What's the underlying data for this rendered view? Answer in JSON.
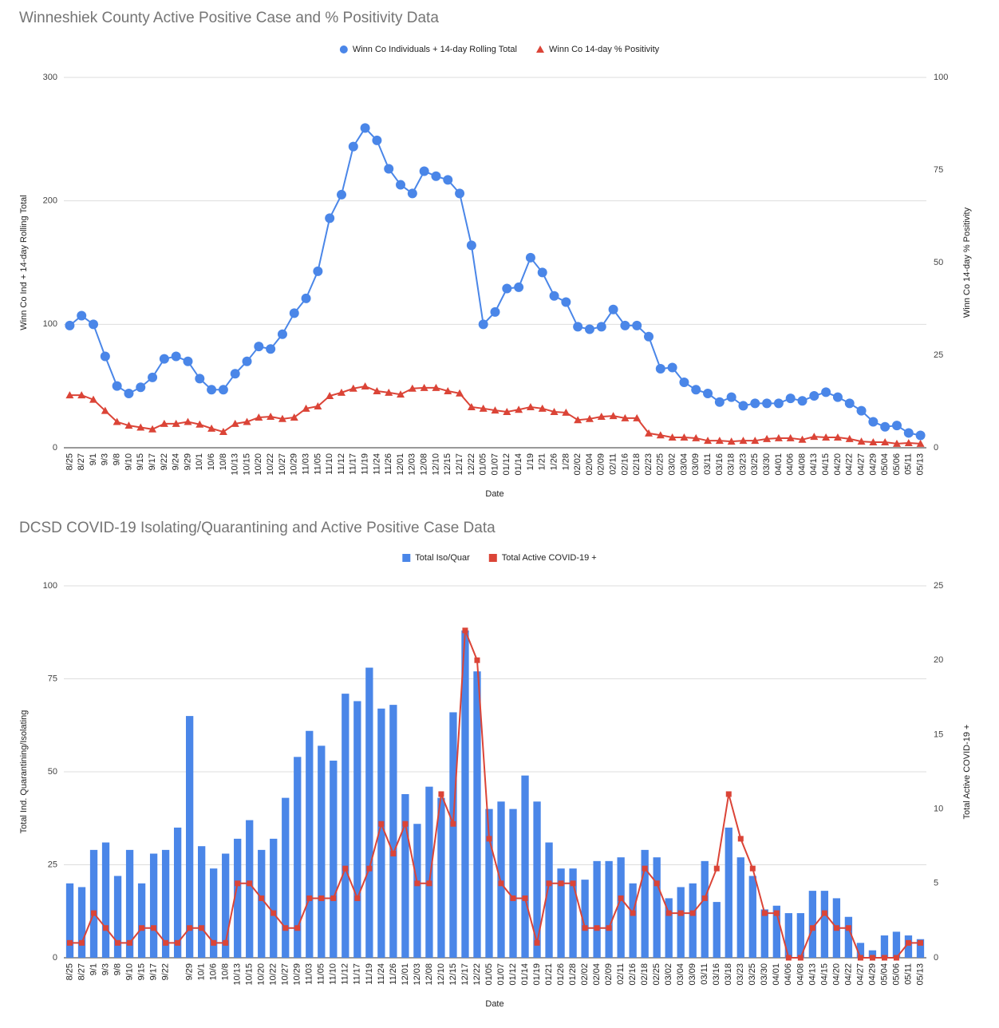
{
  "chart_data": [
    {
      "type": "line",
      "title": "Winneshiek County Active Positive Case and % Positivity Data",
      "xlabel": "Date",
      "ylabel": "Winn Co Ind + 14-day Rolling Total",
      "y2label": "Winn Co 14-day % Positivity",
      "categories": [
        "8/25",
        "8/27",
        "9/1",
        "9/3",
        "9/8",
        "9/10",
        "9/15",
        "9/17",
        "9/22",
        "9/24",
        "9/29",
        "10/1",
        "10/6",
        "10/8",
        "10/13",
        "10/15",
        "10/20",
        "10/22",
        "10/27",
        "10/29",
        "11/03",
        "11/05",
        "11/10",
        "11/12",
        "11/17",
        "11/19",
        "11/24",
        "11/26",
        "12/01",
        "12/03",
        "12/08",
        "12/10",
        "12/15",
        "12/17",
        "12/22",
        "01/05",
        "01/07",
        "01/12",
        "01/14",
        "1/19",
        "1/21",
        "1/26",
        "1/28",
        "02/02",
        "02/04",
        "02/09",
        "02/11",
        "02/16",
        "02/18",
        "02/23",
        "02/25",
        "03/02",
        "03/04",
        "03/09",
        "03/11",
        "03/16",
        "03/18",
        "03/23",
        "03/25",
        "03/30",
        "04/01",
        "04/06",
        "04/08",
        "04/13",
        "04/15",
        "04/20",
        "04/22",
        "04/27",
        "04/29",
        "05/04",
        "05/06",
        "05/11",
        "05/13"
      ],
      "series": [
        {
          "name": "Winn Co Individuals + 14-day Rolling Total",
          "color": "#4a86e8",
          "type": "line",
          "marker": "circle",
          "values": [
            99,
            107,
            100,
            74,
            50,
            44,
            49,
            57,
            72,
            74,
            70,
            56,
            47,
            47,
            60,
            70,
            82,
            80,
            92,
            109,
            121,
            143,
            186,
            205,
            244,
            259,
            249,
            226,
            213,
            206,
            224,
            220,
            217,
            206,
            164,
            100,
            110,
            129,
            130,
            154,
            142,
            123,
            118,
            98,
            96,
            98,
            112,
            99,
            99,
            90,
            64,
            65,
            53,
            47,
            44,
            37,
            41,
            34,
            36,
            36,
            36,
            40,
            38,
            42,
            45,
            41,
            36,
            30,
            21,
            17,
            18,
            12,
            10
          ]
        },
        {
          "name": "Winn Co 14-day % Positivity",
          "color": "#db4437",
          "type": "line",
          "marker": "triangle",
          "axis": "y2",
          "values": [
            14.2,
            14.2,
            13,
            10,
            7,
            6,
            5.5,
            5,
            6.5,
            6.5,
            7,
            6.3,
            5.2,
            4.3,
            6.5,
            7,
            8.2,
            8.4,
            7.8,
            8.2,
            10.6,
            11.2,
            14,
            14.9,
            16,
            16.6,
            15.3,
            14.9,
            14.4,
            16,
            16.2,
            16.2,
            15.3,
            14.7,
            11,
            10.6,
            10.1,
            9.7,
            10.3,
            11,
            10.6,
            9.7,
            9.5,
            7.5,
            7.8,
            8.4,
            8.6,
            8,
            8,
            3.9,
            3.4,
            2.8,
            2.8,
            2.6,
            1.9,
            1.9,
            1.7,
            1.9,
            1.9,
            2.4,
            2.6,
            2.6,
            2.2,
            3,
            2.8,
            2.8,
            2.4,
            1.7,
            1.5,
            1.5,
            1.1,
            1.3,
            1.1
          ]
        }
      ],
      "ylim": [
        0,
        300
      ],
      "yticks": [
        0,
        100,
        200,
        300
      ],
      "y2lim": [
        0,
        100
      ],
      "y2ticks": [
        0,
        25,
        50,
        75,
        100
      ],
      "grid": true,
      "legend": "top"
    },
    {
      "type": "bar",
      "title": "DCSD COVID-19 Isolating/Quarantining and Active Positive Case Data",
      "xlabel": "Date",
      "ylabel": "Total Ind. Quarantining/Isolating",
      "y2label": "Total Active COVID-19 +",
      "categories": [
        "8/25",
        "8/27",
        "9/1",
        "9/3",
        "9/8",
        "9/10",
        "9/15",
        "9/17",
        "9/22",
        null,
        "9/29",
        "10/1",
        "10/6",
        "10/8",
        "10/13",
        "10/15",
        "10/20",
        "10/22",
        "10/27",
        "10/29",
        "11/03",
        "11/05",
        "11/10",
        "11/12",
        "11/17",
        "11/19",
        "11/24",
        "11/26",
        "12/01",
        "12/03",
        "12/08",
        "12/10",
        "12/15",
        "12/17",
        "12/22",
        "01/05",
        "01/07",
        "01/12",
        "01/14",
        "01/19",
        "01/21",
        "01/26",
        "01/28",
        "02/02",
        "02/04",
        "02/09",
        "02/11",
        "02/16",
        "02/18",
        "02/25",
        "03/02",
        "03/04",
        "03/09",
        "03/11",
        "03/16",
        "03/18",
        "03/23",
        "03/25",
        "03/30",
        "04/01",
        "04/06",
        "04/08",
        "04/13",
        "04/15",
        "04/20",
        "04/22",
        "04/27",
        "04/29",
        "05/04",
        "05/06",
        "05/11",
        "05/13"
      ],
      "series": [
        {
          "name": "Total Iso/Quar",
          "color": "#4a86e8",
          "type": "bar",
          "marker": "square",
          "values": [
            20,
            19,
            29,
            31,
            22,
            29,
            20,
            28,
            29,
            35,
            65,
            30,
            24,
            28,
            32,
            37,
            29,
            32,
            43,
            54,
            61,
            57,
            53,
            71,
            69,
            78,
            67,
            68,
            44,
            36,
            46,
            43,
            66,
            88,
            77,
            40,
            42,
            40,
            49,
            42,
            31,
            24,
            24,
            21,
            26,
            26,
            27,
            20,
            29,
            27,
            16,
            19,
            20,
            26,
            15,
            35,
            27,
            22,
            13,
            14,
            12,
            12,
            18,
            18,
            16,
            11,
            4,
            2,
            6,
            7,
            6,
            5
          ]
        },
        {
          "name": "Total Active COVID-19 +",
          "color": "#db4437",
          "type": "line",
          "marker": "square",
          "axis": "y2",
          "values": [
            1,
            1,
            3,
            2,
            1,
            1,
            2,
            2,
            1,
            1,
            2,
            2,
            1,
            1,
            5,
            5,
            4,
            3,
            2,
            2,
            4,
            4,
            4,
            6,
            4,
            6,
            9,
            7,
            9,
            5,
            5,
            11,
            9,
            22,
            20,
            8,
            5,
            4,
            4,
            1,
            5,
            5,
            5,
            2,
            2,
            2,
            4,
            3,
            6,
            5,
            3,
            3,
            3,
            4,
            6,
            11,
            8,
            6,
            3,
            3,
            0,
            0,
            2,
            3,
            2,
            2,
            0,
            0,
            0,
            0,
            1,
            1
          ]
        }
      ],
      "ylim": [
        0,
        100
      ],
      "yticks": [
        0,
        25,
        50,
        75,
        100
      ],
      "y2lim": [
        0,
        25
      ],
      "y2ticks": [
        0,
        5,
        10,
        15,
        20,
        25
      ],
      "grid": true,
      "legend": "top"
    }
  ]
}
